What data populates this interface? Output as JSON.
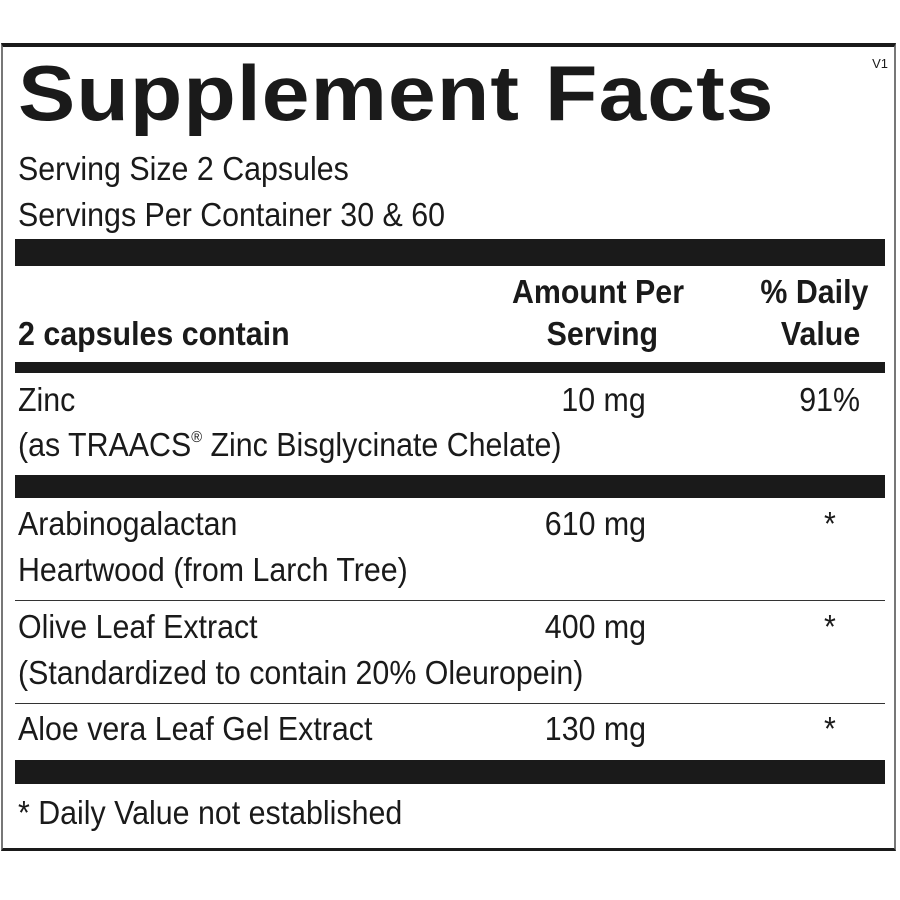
{
  "title": "Supplement Facts",
  "version": "V1",
  "serving_size": "Serving Size 2 Capsules",
  "servings_per_container": "Servings Per Container 30 & 60",
  "header": {
    "contain": "2 capsules contain",
    "amount_line1": "Amount Per",
    "amount_line2": "Serving",
    "dv_line1": "% Daily",
    "dv_line2": "Value"
  },
  "rows": [
    {
      "name": "Zinc",
      "detail": "(as TRAACS",
      "detail_mark": "®",
      "detail_rest": " Zinc Bisglycinate Chelate)",
      "amount": "10 mg",
      "dv": "91%"
    },
    {
      "name": "Arabinogalactan",
      "detail": "Heartwood (from Larch Tree)",
      "amount": "610 mg",
      "dv": "*"
    },
    {
      "name": "Olive Leaf Extract",
      "detail": "(Standardized to contain 20% Oleuropein)",
      "amount": "400 mg",
      "dv": "*"
    },
    {
      "name": "Aloe vera Leaf Gel Extract",
      "amount": "130 mg",
      "dv": "*"
    }
  ],
  "footnote": "* Daily Value not established"
}
